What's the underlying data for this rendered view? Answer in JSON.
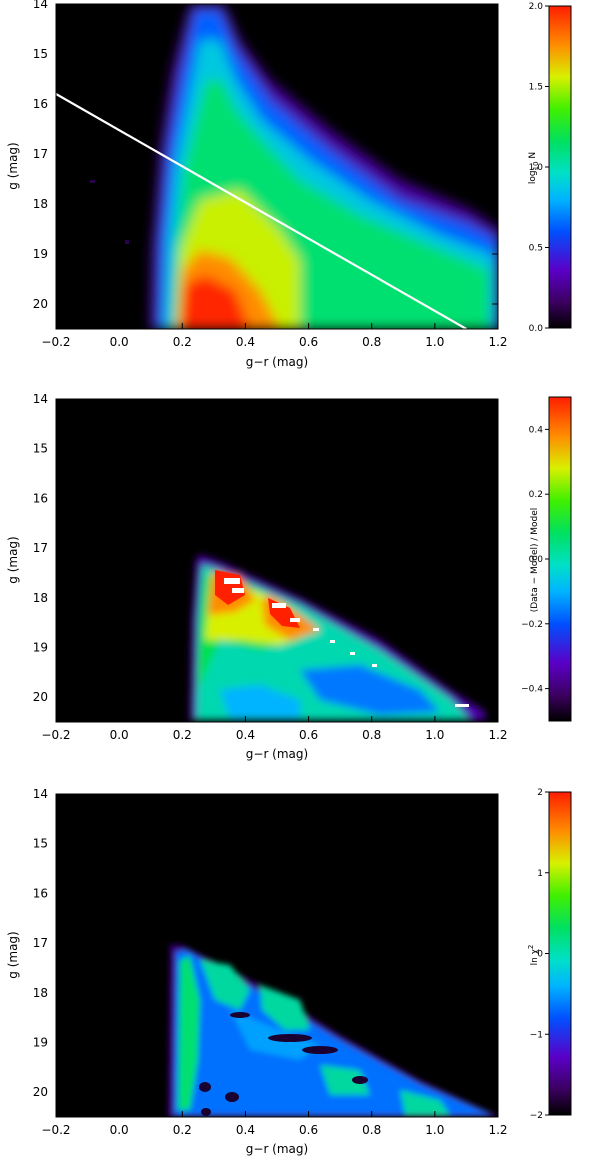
{
  "chart_data": [
    {
      "type": "heatmap",
      "xlabel": "g−r (mag)",
      "ylabel": "g (mag)",
      "xlim": [
        -0.2,
        1.2
      ],
      "ylim": [
        20.5,
        14.0
      ],
      "y_inverted": true,
      "x_ticks": [
        "−0.2",
        "0.0",
        "0.2",
        "0.4",
        "0.6",
        "0.8",
        "1.0",
        "1.2"
      ],
      "y_ticks": [
        "14",
        "15",
        "16",
        "17",
        "18",
        "19",
        "20"
      ],
      "colorbar": {
        "label_main": "log",
        "label_sub": "10",
        "label_tail": " N",
        "range": [
          0.0,
          2.0
        ],
        "ticks": [
          "0.0",
          "0.5",
          "1.0",
          "1.5",
          "2.0"
        ]
      },
      "overlay_line": {
        "x": [
          -0.2,
          1.1
        ],
        "y": [
          15.8,
          20.5
        ]
      },
      "colormap": "rainbow"
    },
    {
      "type": "heatmap",
      "xlabel": "g−r (mag)",
      "ylabel": "g (mag)",
      "xlim": [
        -0.2,
        1.2
      ],
      "ylim": [
        20.5,
        14.0
      ],
      "y_inverted": true,
      "x_ticks": [
        "−0.2",
        "0.0",
        "0.2",
        "0.4",
        "0.6",
        "0.8",
        "1.0",
        "1.2"
      ],
      "y_ticks": [
        "14",
        "15",
        "16",
        "17",
        "18",
        "19",
        "20"
      ],
      "colorbar": {
        "label_main": "(Data − Model) / Model",
        "label_sub": "",
        "label_tail": "",
        "range": [
          -0.5,
          0.5
        ],
        "ticks": [
          "−0.4",
          "−0.2",
          "0.0",
          "0.2",
          "0.4"
        ]
      },
      "colormap": "rainbow"
    },
    {
      "type": "heatmap",
      "xlabel": "g−r (mag)",
      "ylabel": "g (mag)",
      "xlim": [
        -0.2,
        1.2
      ],
      "ylim": [
        20.5,
        14.0
      ],
      "y_inverted": true,
      "x_ticks": [
        "−0.2",
        "0.0",
        "0.2",
        "0.4",
        "0.6",
        "0.8",
        "1.0",
        "1.2"
      ],
      "y_ticks": [
        "14",
        "15",
        "16",
        "17",
        "18",
        "19",
        "20"
      ],
      "colorbar": {
        "label_main": "ln χ",
        "label_sub": "2",
        "label_tail": "",
        "range": [
          -2,
          2
        ],
        "ticks": [
          "−2",
          "−1",
          "0",
          "1",
          "2"
        ]
      },
      "colormap": "rainbow"
    }
  ]
}
